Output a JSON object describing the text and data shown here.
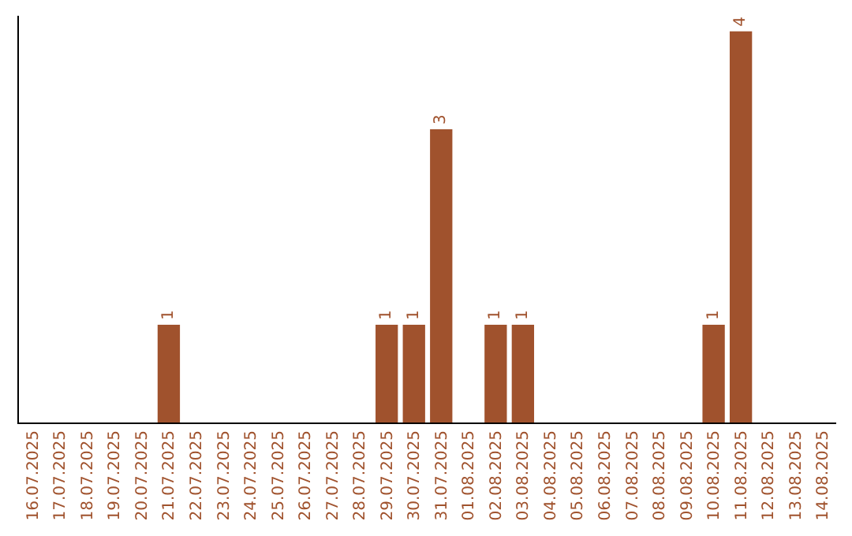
{
  "chart_data": {
    "type": "bar",
    "categories": [
      "16.07.2025",
      "17.07.2025",
      "18.07.2025",
      "19.07.2025",
      "20.07.2025",
      "21.07.2025",
      "22.07.2025",
      "23.07.2025",
      "24.07.2025",
      "25.07.2025",
      "26.07.2025",
      "27.07.2025",
      "28.07.2025",
      "29.07.2025",
      "30.07.2025",
      "31.07.2025",
      "01.08.2025",
      "02.08.2025",
      "03.08.2025",
      "04.08.2025",
      "05.08.2025",
      "06.08.2025",
      "07.08.2025",
      "08.08.2025",
      "09.08.2025",
      "10.08.2025",
      "11.08.2025",
      "12.08.2025",
      "13.08.2025",
      "14.08.2025"
    ],
    "values": [
      0,
      0,
      0,
      0,
      0,
      1,
      0,
      0,
      0,
      0,
      0,
      0,
      0,
      1,
      1,
      3,
      0,
      1,
      1,
      0,
      0,
      0,
      0,
      0,
      0,
      1,
      4,
      0,
      0,
      0
    ],
    "value_labels": [
      null,
      null,
      null,
      null,
      null,
      "1",
      null,
      null,
      null,
      null,
      null,
      null,
      null,
      "1",
      "1",
      "3",
      null,
      "1",
      "1",
      null,
      null,
      null,
      null,
      null,
      null,
      "1",
      "4",
      null,
      null,
      null
    ],
    "color": "#a0522d",
    "tick_labels": "x",
    "legend": false
  }
}
